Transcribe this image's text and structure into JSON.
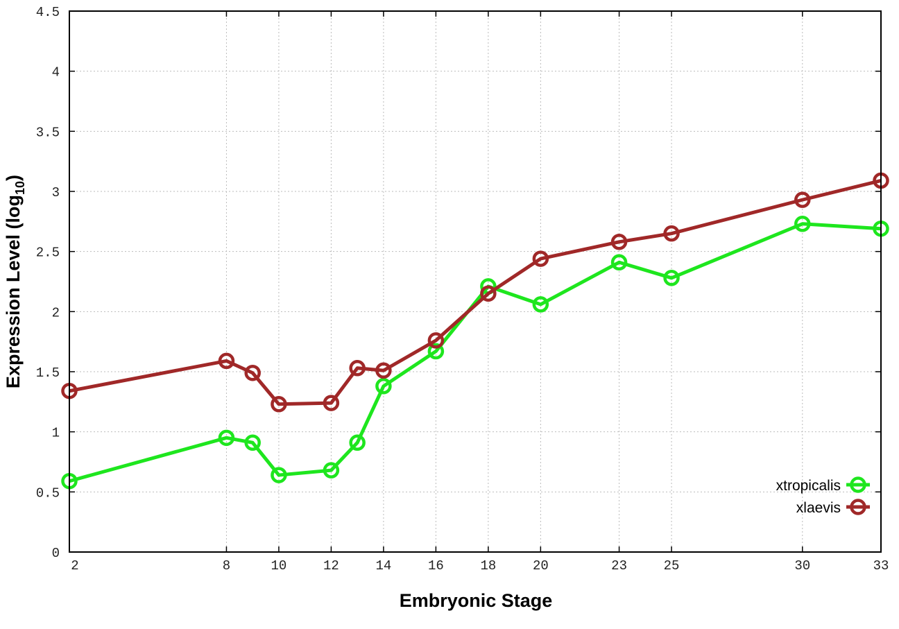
{
  "chart_data": {
    "type": "line",
    "xlabel": "Embryonic Stage",
    "ylabel": "Expression Level (log",
    "ylabel_sub": "10",
    "ylabel_close": ")",
    "xlim": [
      2,
      33
    ],
    "ylim": [
      0,
      4.5
    ],
    "x_ticks": [
      2,
      8,
      10,
      12,
      14,
      16,
      18,
      20,
      23,
      25,
      30,
      33
    ],
    "y_ticks": [
      0,
      0.5,
      1,
      1.5,
      2,
      2.5,
      3,
      3.5,
      4,
      4.5
    ],
    "y_tick_labels": [
      "0",
      "0.5",
      "1",
      "1.5",
      "2",
      "2.5",
      "3",
      "3.5",
      "4",
      "4.5"
    ],
    "grid": true,
    "legend_position": "bottom-right",
    "x": [
      2,
      8,
      9,
      10,
      12,
      13,
      14,
      16,
      18,
      20,
      23,
      25,
      30,
      33
    ],
    "series": [
      {
        "name": "xtropicalis",
        "color": "#1ee61e",
        "values": [
          0.59,
          0.95,
          0.91,
          0.64,
          0.68,
          0.91,
          1.38,
          1.67,
          2.21,
          2.06,
          2.41,
          2.28,
          2.73,
          2.69
        ]
      },
      {
        "name": "xlaevis",
        "color": "#a02828",
        "values": [
          1.34,
          1.59,
          1.49,
          1.23,
          1.24,
          1.53,
          1.51,
          1.76,
          2.15,
          2.44,
          2.58,
          2.65,
          2.93,
          3.09
        ]
      }
    ]
  }
}
